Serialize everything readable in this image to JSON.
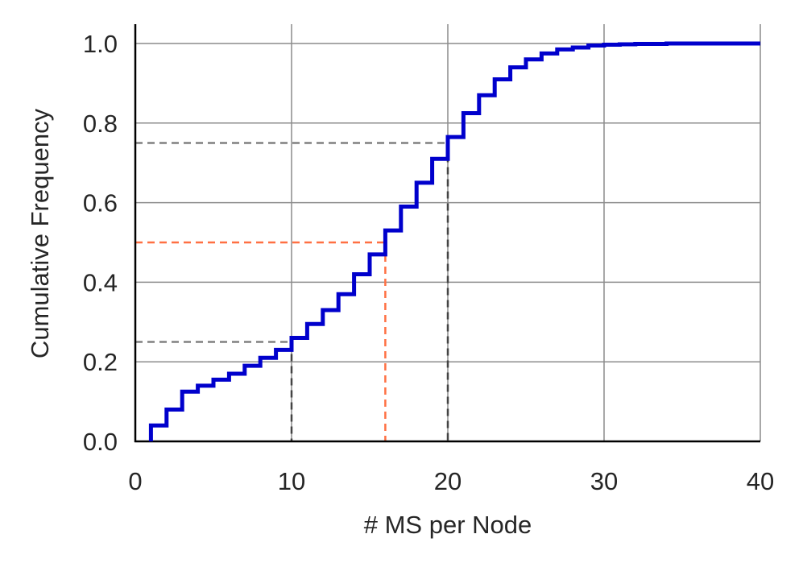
{
  "chart_data": {
    "type": "line",
    "subtype": "step-cdf",
    "title": "",
    "xlabel": "# MS per Node",
    "ylabel": "Cumulative Frequency",
    "xlim": [
      0,
      40
    ],
    "ylim": [
      0,
      1.0
    ],
    "xticks": [
      0,
      10,
      20,
      30,
      40
    ],
    "xtick_labels": [
      "0",
      "10",
      "20",
      "30",
      "40"
    ],
    "yticks": [
      0.0,
      0.2,
      0.4,
      0.6,
      0.8,
      1.0
    ],
    "ytick_labels": [
      "0.0",
      "0.2",
      "0.4",
      "0.6",
      "0.8",
      "1.0"
    ],
    "grid": true,
    "series": [
      {
        "color": "#0000cc",
        "x": [
          1,
          2,
          3,
          4,
          5,
          6,
          7,
          8,
          9,
          10,
          11,
          12,
          13,
          14,
          15,
          16,
          17,
          18,
          19,
          20,
          21,
          22,
          23,
          24,
          25,
          26,
          27,
          28,
          29,
          30,
          31,
          32,
          33,
          34,
          35,
          36,
          37,
          38,
          39,
          40
        ],
        "y": [
          0.04,
          0.08,
          0.125,
          0.14,
          0.155,
          0.17,
          0.19,
          0.21,
          0.23,
          0.26,
          0.295,
          0.33,
          0.37,
          0.42,
          0.47,
          0.53,
          0.59,
          0.65,
          0.71,
          0.765,
          0.825,
          0.87,
          0.91,
          0.94,
          0.96,
          0.975,
          0.985,
          0.99,
          0.995,
          0.997,
          0.998,
          0.999,
          0.999,
          1.0,
          1.0,
          1.0,
          1.0,
          1.0,
          1.0,
          1.0
        ]
      }
    ],
    "reference_lines": [
      {
        "y": 0.25,
        "x": 10,
        "color": "#808080"
      },
      {
        "y": 0.5,
        "x": 16,
        "color": "#ff7043"
      },
      {
        "y": 0.75,
        "x": 20,
        "color": "#808080"
      }
    ]
  }
}
